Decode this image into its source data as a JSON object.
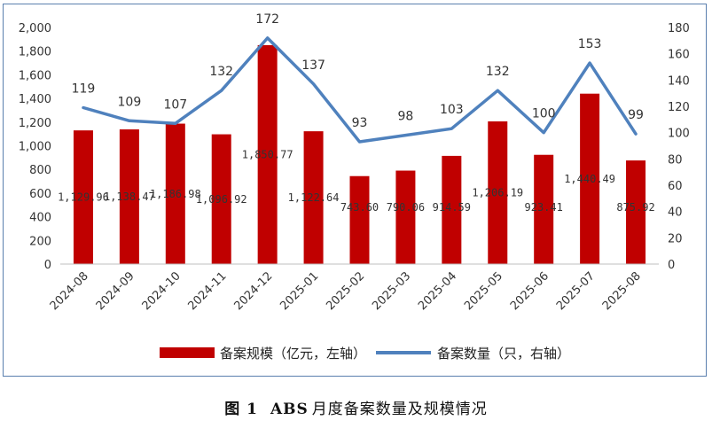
{
  "figure_caption": {
    "label": "图 1",
    "abs": "ABS",
    "title": "月度备案数量及规模情况"
  },
  "colors": {
    "bar": "#c00000",
    "line": "#4f81bd",
    "frame": "#5a7fae",
    "axis_text": "#333333"
  },
  "chart_data": {
    "type": "bar",
    "categories": [
      "2024-08",
      "2024-09",
      "2024-10",
      "2024-11",
      "2024-12",
      "2025-01",
      "2025-02",
      "2025-03",
      "2025-04",
      "2025-05",
      "2025-06",
      "2025-07",
      "2025-08"
    ],
    "series": [
      {
        "name": "备案规模（亿元，左轴）",
        "type": "bar",
        "axis": "left",
        "values": [
          1129.96,
          1138.47,
          1186.98,
          1096.92,
          1850.77,
          1122.64,
          743.6,
          790.06,
          914.59,
          1206.19,
          923.41,
          1440.49,
          875.92
        ],
        "labels": [
          "1,129.96",
          "1,138.47",
          "1,186.98",
          "1,096.92",
          "1,850.77",
          "1,122.64",
          "743.60",
          "790.06",
          "914.59",
          "1,206.19",
          "923.41",
          "1,440.49",
          "875.92"
        ]
      },
      {
        "name": "备案数量（只，右轴）",
        "type": "line",
        "axis": "right",
        "values": [
          119,
          109,
          107,
          132,
          172,
          137,
          93,
          98,
          103,
          132,
          100,
          153,
          99
        ],
        "labels": [
          "119",
          "109",
          "107",
          "132",
          "172",
          "137",
          "93",
          "98",
          "103",
          "132",
          "100",
          "153",
          "99"
        ]
      }
    ],
    "y_left": {
      "range": [
        0,
        2000
      ],
      "ticks": [
        0,
        200,
        400,
        600,
        800,
        1000,
        1200,
        1400,
        1600,
        1800,
        2000
      ],
      "tick_labels": [
        "0",
        "200",
        "400",
        "600",
        "800",
        "1,000",
        "1,200",
        "1,400",
        "1,600",
        "1,800",
        "2,000"
      ]
    },
    "y_right": {
      "range": [
        0,
        180
      ],
      "ticks": [
        0,
        20,
        40,
        60,
        80,
        100,
        120,
        140,
        160,
        180
      ],
      "tick_labels": [
        "0",
        "20",
        "40",
        "60",
        "80",
        "100",
        "120",
        "140",
        "160",
        "180"
      ]
    },
    "grid": false,
    "legend_position": "bottom"
  }
}
